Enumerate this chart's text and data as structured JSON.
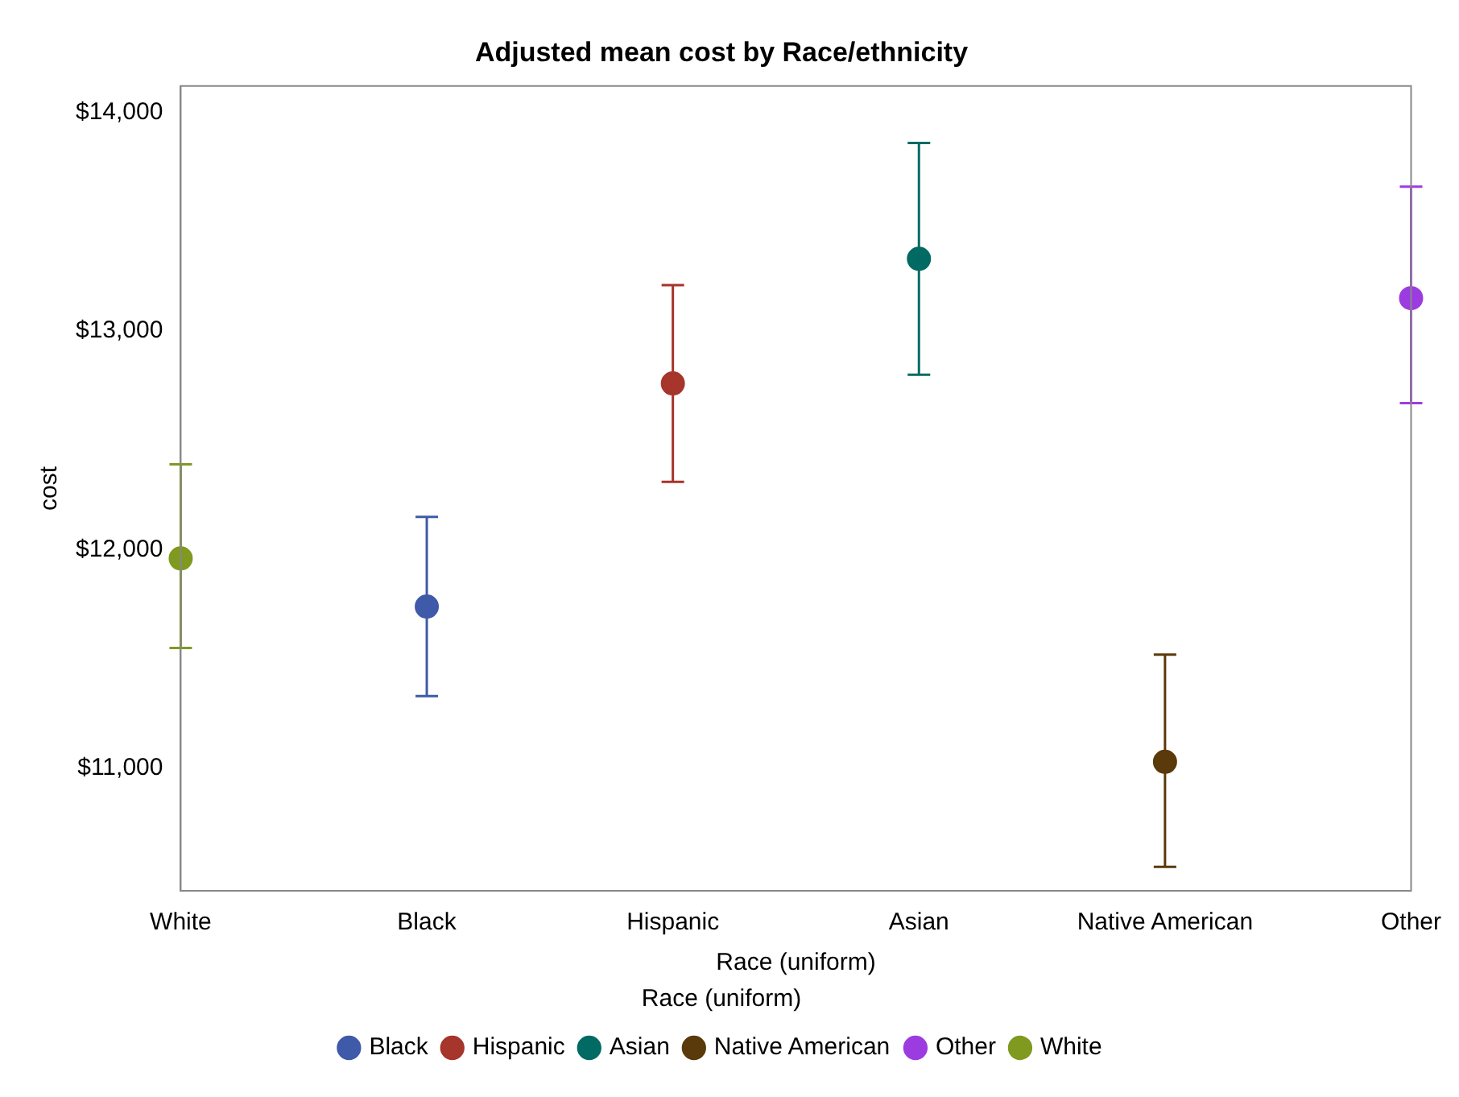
{
  "chart_data": {
    "type": "scatter",
    "title": "Adjusted mean cost by Race/ethnicity",
    "xlabel": "Race (uniform)",
    "ylabel": "cost",
    "legend_title": "Race (uniform)",
    "categories": [
      "White",
      "Black",
      "Hispanic",
      "Asian",
      "Native American",
      "Other"
    ],
    "series": [
      {
        "name": "Black",
        "color": "#3f5aa8",
        "values": [
          null,
          11740,
          null,
          null,
          null,
          null
        ],
        "errors": [
          null,
          [
            11330,
            12150
          ],
          null,
          null,
          null,
          null
        ]
      },
      {
        "name": "Hispanic",
        "color": "#a6352b",
        "values": [
          null,
          null,
          12760,
          null,
          null,
          null
        ],
        "errors": [
          null,
          null,
          [
            12310,
            13210
          ],
          null,
          null,
          null
        ]
      },
      {
        "name": "Asian",
        "color": "#016a63",
        "values": [
          null,
          null,
          null,
          13330,
          null,
          null
        ],
        "errors": [
          null,
          null,
          null,
          [
            12800,
            13860
          ],
          null,
          null
        ]
      },
      {
        "name": "Native American",
        "color": "#5a3a0a",
        "values": [
          null,
          null,
          null,
          null,
          11030,
          null
        ],
        "errors": [
          null,
          null,
          null,
          null,
          [
            10550,
            11520
          ],
          null
        ]
      },
      {
        "name": "Other",
        "color": "#9c3ce0",
        "values": [
          null,
          null,
          null,
          null,
          null,
          13150
        ],
        "errors": [
          null,
          null,
          null,
          null,
          null,
          [
            12670,
            13660
          ]
        ]
      },
      {
        "name": "White",
        "color": "#7f9a1f",
        "values": [
          11960,
          null,
          null,
          null,
          null,
          null
        ],
        "errors": [
          [
            11550,
            12390
          ],
          null,
          null,
          null,
          null,
          null
        ]
      }
    ],
    "ylim": [
      10440,
      14120
    ],
    "yticks": [
      {
        "value": 11000,
        "label": "$11,000"
      },
      {
        "value": 12000,
        "label": "$12,000"
      },
      {
        "value": 13000,
        "label": "$13,000"
      },
      {
        "value": 14000,
        "label": "$14,000"
      }
    ],
    "grid": false,
    "legend": "bottom",
    "marker": "circle"
  }
}
